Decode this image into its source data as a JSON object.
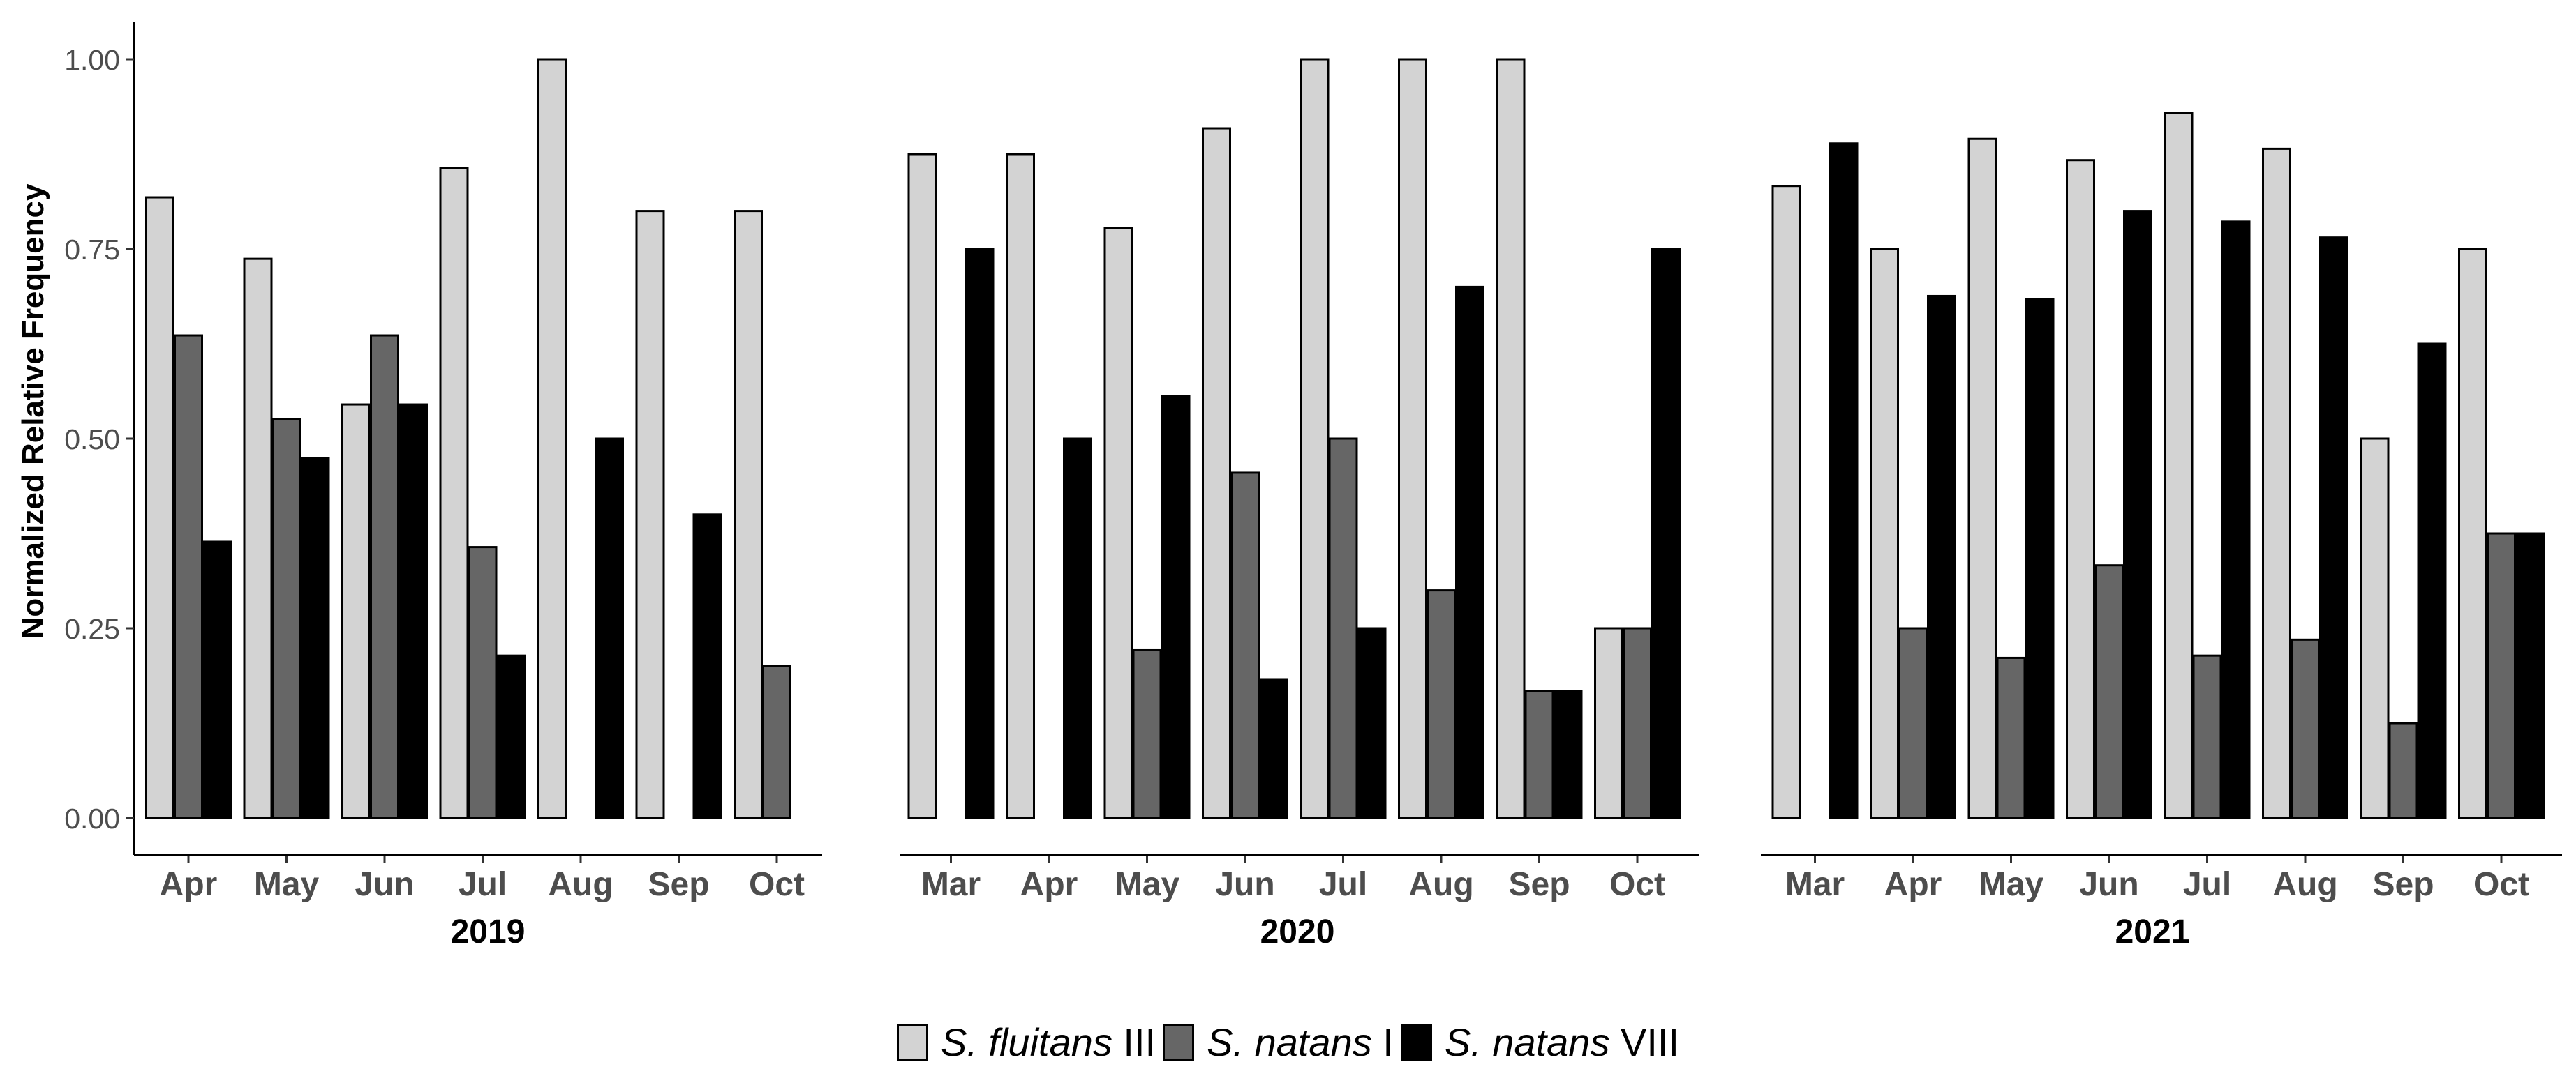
{
  "chart_data": {
    "type": "bar",
    "ylabel": "Normalized Relative Frequency",
    "ylim": [
      0,
      1.0
    ],
    "yticks": [
      "0.00",
      "0.25",
      "0.50",
      "0.75",
      "1.00"
    ],
    "yticks_values": [
      0,
      0.25,
      0.5,
      0.75,
      1.0
    ],
    "grid": false,
    "legend_position": "bottom",
    "series": [
      {
        "name": "S. fluitans III",
        "species": "S. fluitans",
        "morphotype": "III",
        "color": "#d3d3d3"
      },
      {
        "name": "S. natans I",
        "species": "S. natans",
        "morphotype": "I",
        "color": "#666666"
      },
      {
        "name": "S. natans VIII",
        "species": "S. natans",
        "morphotype": "VIII",
        "color": "#000000"
      }
    ],
    "panels": [
      {
        "title": "2019",
        "categories": [
          "Apr",
          "May",
          "Jun",
          "Jul",
          "Aug",
          "Sep",
          "Oct"
        ],
        "values": [
          [
            0.818,
            0.737,
            0.545,
            0.857,
            1.0,
            0.8,
            0.8
          ],
          [
            0.636,
            0.526,
            0.636,
            0.357,
            0.0,
            0.0,
            0.2
          ],
          [
            0.364,
            0.474,
            0.545,
            0.214,
            0.5,
            0.4,
            0.0
          ]
        ]
      },
      {
        "title": "2020",
        "categories": [
          "Mar",
          "Apr",
          "May",
          "Jun",
          "Jul",
          "Aug",
          "Sep",
          "Oct"
        ],
        "values": [
          [
            0.875,
            0.875,
            0.778,
            0.909,
            1.0,
            1.0,
            1.0,
            0.25
          ],
          [
            0.0,
            0.0,
            0.222,
            0.455,
            0.5,
            0.3,
            0.167,
            0.25
          ],
          [
            0.75,
            0.5,
            0.556,
            0.182,
            0.25,
            0.7,
            0.167,
            0.75
          ]
        ]
      },
      {
        "title": "2021",
        "categories": [
          "Mar",
          "Apr",
          "May",
          "Jun",
          "Jul",
          "Aug",
          "Sep",
          "Oct"
        ],
        "values": [
          [
            0.833,
            0.75,
            0.895,
            0.867,
            0.929,
            0.882,
            0.5,
            0.75
          ],
          [
            0.0,
            0.25,
            0.211,
            0.333,
            0.214,
            0.235,
            0.125,
            0.375
          ],
          [
            0.889,
            0.688,
            0.684,
            0.8,
            0.786,
            0.765,
            0.625,
            0.375
          ]
        ]
      }
    ]
  }
}
